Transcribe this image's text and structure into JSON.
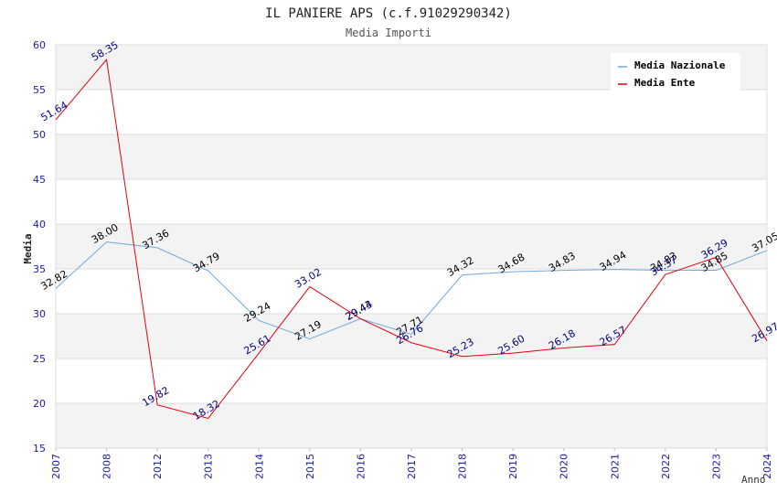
{
  "chart_data": {
    "type": "line",
    "title": "IL PANIERE APS (c.f.91029290342)",
    "subtitle": "Media Importi",
    "ylabel": "Media",
    "xlabel": "Anno",
    "ylim": [
      15,
      60
    ],
    "yticks": [
      15,
      20,
      25,
      30,
      35,
      40,
      45,
      50,
      55,
      60
    ],
    "grid": true,
    "legend_position": "top-right",
    "categories": [
      "2007",
      "2008",
      "2012",
      "2013",
      "2014",
      "2015",
      "2016",
      "2017",
      "2018",
      "2019",
      "2020",
      "2021",
      "2022",
      "2023",
      "2024"
    ],
    "series": [
      {
        "name": "Media Nazionale",
        "color": "#6fa8dc",
        "label_color": "#000000",
        "values": [
          32.82,
          38.0,
          37.36,
          34.79,
          29.24,
          27.19,
          29.44,
          27.71,
          34.32,
          34.68,
          34.83,
          34.94,
          34.83,
          34.85,
          37.05
        ],
        "labels": [
          "32.82",
          "38.00",
          "37.36",
          "34.79",
          "29.24",
          "27.19",
          "29.44",
          "27.71",
          "34.32",
          "34.68",
          "34.83",
          "34.94",
          "34.83",
          "34.85",
          "37.05"
        ]
      },
      {
        "name": "Media Ente",
        "color": "#e0000e",
        "label_color": "#000080",
        "values": [
          51.64,
          58.35,
          19.82,
          18.32,
          25.61,
          33.02,
          29.43,
          26.76,
          25.23,
          25.6,
          26.18,
          26.57,
          34.37,
          36.29,
          26.97
        ],
        "labels": [
          "51.64",
          "58.35",
          "19.82",
          "18.32",
          "25.61",
          "33.02",
          "29.43",
          "26.76",
          "25.23",
          "25.60",
          "26.18",
          "26.57",
          "34.37",
          "36.29",
          "26.97"
        ]
      }
    ]
  }
}
